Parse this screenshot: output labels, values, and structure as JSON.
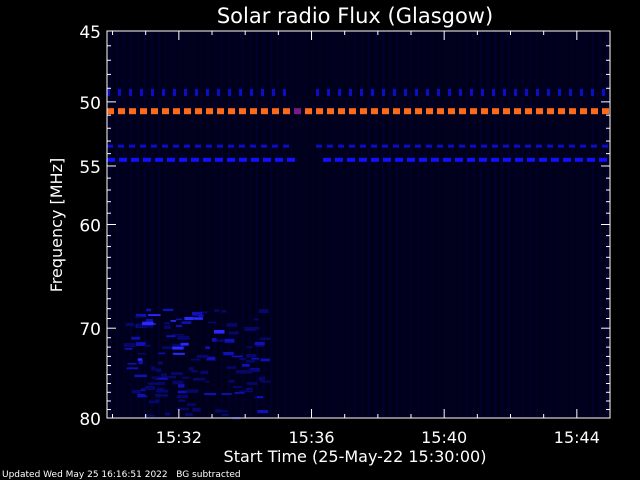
{
  "chart_data": {
    "type": "heatmap",
    "title": "Solar radio Flux (Glasgow)",
    "xlabel": "Start Time (25-May-22 15:30:00)",
    "ylabel": "Frequency [MHz]",
    "x_unit": "minutes",
    "xlim": [
      "15:29:50",
      "15:45:00"
    ],
    "ylim": [
      45,
      80
    ],
    "y_scale": "log",
    "x_ticks": [
      "15:32",
      "15:36",
      "15:40",
      "15:44"
    ],
    "y_ticks": [
      45,
      50,
      55,
      60,
      70,
      80
    ],
    "colormap": [
      "#000018",
      "#000060",
      "#0000ff",
      "#ff6000"
    ],
    "features": [
      {
        "name": "",
        "freq": 50.7,
        "t_start": "15:29:50",
        "t_end": "15:45:00",
        "intensity": "high"
      },
      {
        "name": "",
        "freq": 49.3,
        "t_start": "15:29:50",
        "t_end": "15:45:00",
        "intensity": "low"
      },
      {
        "name": "",
        "freq": 53.4,
        "t_start": "15:29:50",
        "t_end": "15:45:00",
        "intensity": "low"
      },
      {
        "name": "",
        "freq": 54.5,
        "t_start": "15:29:50",
        "t_end": "15:45:00",
        "intensity": "medium"
      },
      {
        "name": "",
        "freq_range": [
          68,
          80
        ],
        "t_start": "15:30:20",
        "t_end": "15:34:30",
        "intensity": "medium"
      }
    ]
  },
  "colors": {
    "background": "#000000",
    "plot_bg": "#00001a",
    "axis": "#ffffff",
    "strong_band": "#ff6a1a",
    "weak_band": "#1010ff"
  },
  "footer": {
    "text": "Updated Wed May 25 16:16:51 2022   BG subtracted"
  }
}
